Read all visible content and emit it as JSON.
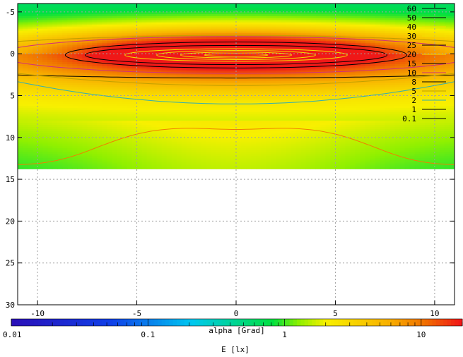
{
  "chart_data": {
    "type": "heatmap",
    "title": "",
    "xlabel": "alpha [Grad]",
    "ylabel": "",
    "colorbar_label": "E [lx]",
    "xlim": [
      -11,
      11
    ],
    "ylim": [
      -6,
      30
    ],
    "y_inverted": true,
    "grid": true,
    "x_ticks": [
      -10,
      -5,
      0,
      5,
      10
    ],
    "x_tick_labels": [
      "-10",
      "-5",
      "0",
      "5",
      "10"
    ],
    "y_ticks": [
      -5,
      0,
      5,
      10,
      15,
      20,
      25,
      30
    ],
    "y_tick_labels": [
      "-5",
      "0",
      "5",
      "10",
      "15",
      "20",
      "25",
      "30"
    ],
    "data_extent": {
      "x": [
        -11,
        11
      ],
      "y": [
        -6,
        13.7
      ]
    },
    "colorbar": {
      "scale": "log",
      "range": [
        0.01,
        20
      ],
      "tick_values": [
        0.01,
        0.1,
        1,
        10
      ],
      "tick_labels": [
        "0.01",
        "0.1",
        "1",
        "10"
      ]
    },
    "legend": {
      "placement": "top-right",
      "levels": [
        "60",
        "50",
        "40",
        "30",
        "25",
        "20",
        "15",
        "10",
        "8",
        "5",
        "2",
        "1",
        "0.1"
      ],
      "colors": [
        "#000000",
        "#000000",
        "#f5e000",
        "#f5e000",
        "#000000",
        "#f5e000",
        "#000000",
        "#d0307a",
        "#000000",
        "#c0a000",
        "#30b0b0",
        "#000000",
        "#000000"
      ]
    },
    "peak": {
      "x": 0,
      "y": 0,
      "value": 60
    },
    "colors": {
      "low": "#2a10b8",
      "mid_low": "#00c8f0",
      "mid": "#00e040",
      "mid_high": "#f8f000",
      "high": "#f07000",
      "peak": "#f01818"
    }
  }
}
